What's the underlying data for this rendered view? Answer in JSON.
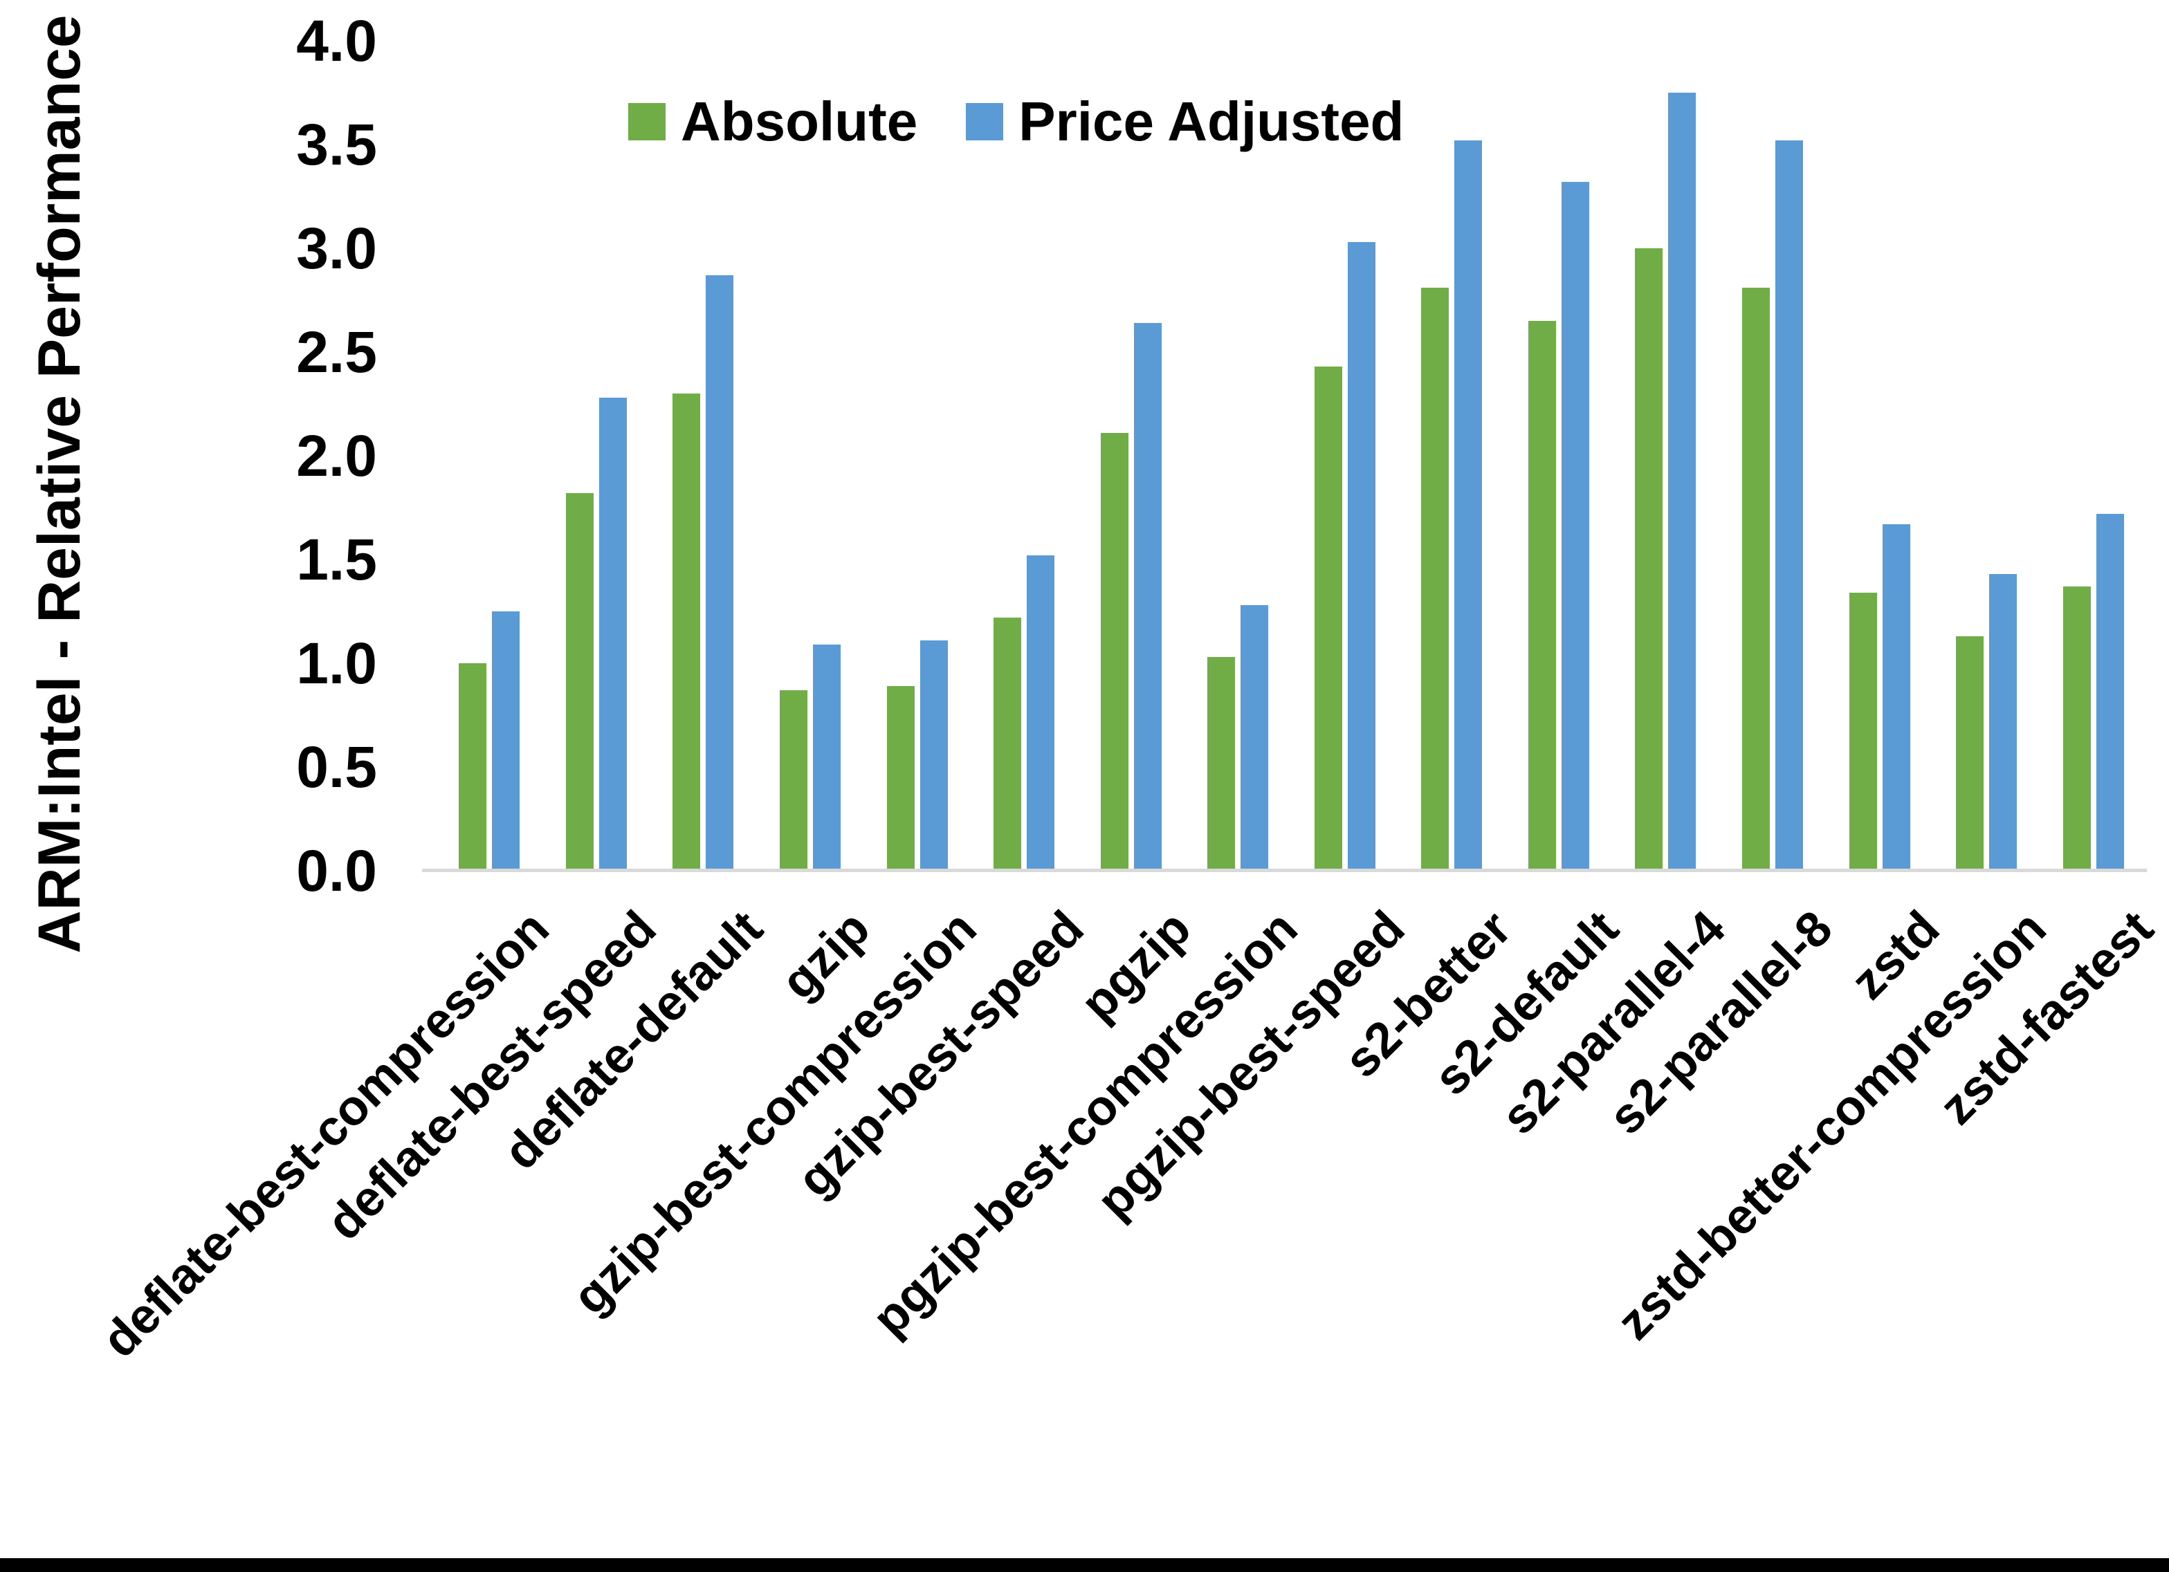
{
  "chart_data": {
    "type": "bar",
    "title": "",
    "xlabel": "",
    "ylabel": "ARM:Intel - Relative Performance",
    "ylim": [
      0.0,
      4.0
    ],
    "ytick_step": 0.5,
    "ytick_labels": [
      "0.0",
      "0.5",
      "1.0",
      "1.5",
      "2.0",
      "2.5",
      "3.0",
      "3.5",
      "4.0"
    ],
    "grid": false,
    "legend_position": "top-center",
    "categories": [
      "deflate-best-compression",
      "deflate-best-speed",
      "deflate-default",
      "gzip",
      "gzip-best-compression",
      "gzip-best-speed",
      "pgzip",
      "pgzip-best-compression",
      "pgzip-best-speed",
      "s2-better",
      "s2-default",
      "s2-parallel-4",
      "s2-parallel-8",
      "zstd",
      "zstd-better-compression",
      "zstd-fastest"
    ],
    "series": [
      {
        "name": "Absolute",
        "color": "#70AD47",
        "values": [
          1.0,
          1.82,
          2.3,
          0.87,
          0.89,
          1.22,
          2.11,
          1.03,
          2.43,
          2.81,
          2.65,
          3.0,
          2.81,
          1.34,
          1.13,
          1.37
        ]
      },
      {
        "name": "Price Adjusted",
        "color": "#5B9BD5",
        "values": [
          1.25,
          2.28,
          2.87,
          1.09,
          1.11,
          1.52,
          2.64,
          1.28,
          3.03,
          3.52,
          3.32,
          3.75,
          3.52,
          1.67,
          1.43,
          1.72
        ]
      }
    ]
  },
  "colors": {
    "background": "#FFFFFF",
    "axis_line": "#D9D9D9",
    "text": "#000000",
    "bottom_bar": "#000000"
  }
}
